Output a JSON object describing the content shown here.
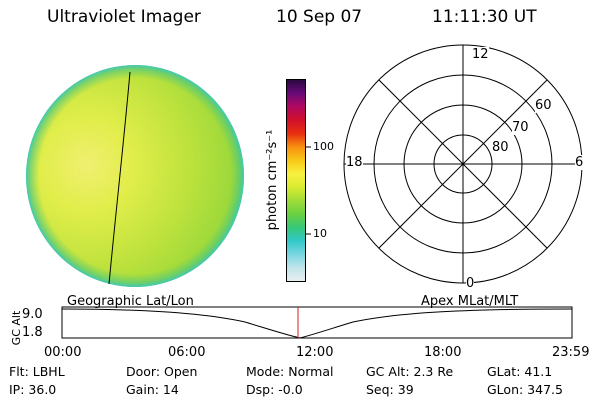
{
  "header": {
    "title": "Ultraviolet Imager",
    "date": "10 Sep 07",
    "time": "11:11:30 UT"
  },
  "colorbar": {
    "unit_label": "photon cm⁻²s⁻¹",
    "ticks": [
      "100",
      "10"
    ],
    "colors": [
      "#e8eef0",
      "#c0e4ea",
      "#7ad6e0",
      "#30c8c8",
      "#38c878",
      "#6ad040",
      "#a0dc38",
      "#d8ec30",
      "#f8f040",
      "#f8c818",
      "#f89010",
      "#e83010",
      "#d0102a",
      "#b00860",
      "#6a0a78",
      "#2a0a40"
    ]
  },
  "polar_grid": {
    "mlt_labels": [
      "12",
      "18",
      "6",
      "0"
    ],
    "lat_labels": [
      "60",
      "70",
      "80"
    ]
  },
  "timeline": {
    "left_label": "Geographic Lat/Lon",
    "right_label": "Apex  MLat/MLT",
    "axis_label": "GC Alt",
    "y_ticks": [
      "9.0",
      "1.8"
    ],
    "x_ticks": [
      "00:00",
      "06:00",
      "12:00",
      "18:00",
      "23:59"
    ],
    "marker_color": "#d02020"
  },
  "status": {
    "filter": "Flt: LBHL",
    "door": "Door: Open",
    "mode": "Mode: Normal",
    "gc_alt": "GC Alt: 2.3 Re",
    "glat": "GLat:  41.1",
    "ip": "IP: 36.0",
    "gain": "Gain: 14",
    "dsp": "Dsp:   -0.0",
    "seq": "Seq: 39",
    "glon": "GLon: 347.5"
  }
}
